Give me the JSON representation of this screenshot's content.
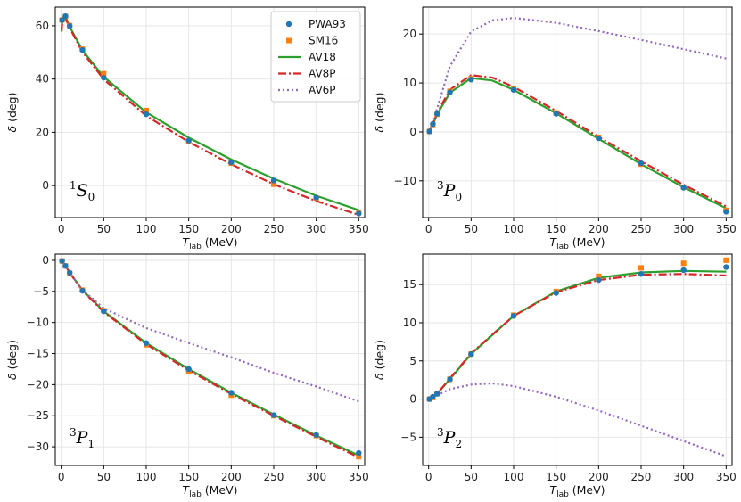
{
  "colors": {
    "pwa93": "#1f77b4",
    "sm16": "#ff7f0e",
    "av18": "#2ca02c",
    "av8p": "#d62728",
    "av6p": "#9467bd",
    "grid": "#e6e6e6",
    "axis": "#000000"
  },
  "legend": {
    "entries": [
      "PWA93",
      "SM16",
      "AV18",
      "AV8P",
      "AV6P"
    ],
    "placement": "top-right of first panel"
  },
  "chart_data": [
    {
      "type": "scatter+line",
      "panel_label": {
        "sup": "1",
        "main": "S",
        "sub": "0"
      },
      "xlabel": {
        "main": "T",
        "sub": "lab",
        "unit": "(MeV)"
      },
      "ylabel": {
        "greek": "δ",
        "unit": "(deg)"
      },
      "xlim": [
        -7,
        357
      ],
      "ylim": [
        -12,
        67
      ],
      "xticks": [
        0,
        50,
        100,
        150,
        200,
        250,
        300,
        350
      ],
      "yticks": [
        0,
        20,
        40,
        60
      ],
      "grid": true,
      "points": {
        "PWA93": [
          [
            1,
            62.1
          ],
          [
            5,
            63.6
          ],
          [
            10,
            59.9
          ],
          [
            25,
            50.9
          ],
          [
            50,
            40.5
          ],
          [
            100,
            26.8
          ],
          [
            150,
            16.9
          ],
          [
            200,
            8.7
          ],
          [
            250,
            1.9
          ],
          [
            300,
            -4.5
          ],
          [
            350,
            -10.5
          ]
        ],
        "SM16": [
          [
            1,
            62.2
          ],
          [
            5,
            63.5
          ],
          [
            10,
            60.1
          ],
          [
            25,
            51.2
          ],
          [
            50,
            42.0
          ],
          [
            100,
            28.2
          ],
          [
            150,
            16.6
          ],
          [
            200,
            8.4
          ],
          [
            250,
            0.5
          ],
          [
            300,
            -4.7
          ],
          [
            350,
            -10.0
          ]
        ]
      },
      "curves": {
        "AV18": [
          [
            0.5,
            59.0
          ],
          [
            1,
            61.5
          ],
          [
            3,
            63.6
          ],
          [
            5,
            63.3
          ],
          [
            10,
            59.6
          ],
          [
            25,
            50.8
          ],
          [
            50,
            40.8
          ],
          [
            100,
            27.5
          ],
          [
            150,
            18.0
          ],
          [
            200,
            9.8
          ],
          [
            250,
            2.6
          ],
          [
            300,
            -3.8
          ],
          [
            350,
            -9.2
          ]
        ],
        "AV8P": [
          [
            0.5,
            57.8
          ],
          [
            1,
            60.5
          ],
          [
            3,
            62.8
          ],
          [
            5,
            62.8
          ],
          [
            10,
            59.2
          ],
          [
            25,
            50.1
          ],
          [
            50,
            39.9
          ],
          [
            100,
            26.2
          ],
          [
            150,
            16.4
          ],
          [
            200,
            8.0
          ],
          [
            250,
            0.5
          ],
          [
            300,
            -5.8
          ],
          [
            350,
            -11.0
          ]
        ]
      }
    },
    {
      "type": "scatter+line",
      "panel_label": {
        "sup": "3",
        "main": "P",
        "sub": "0"
      },
      "xlabel": {
        "main": "T",
        "sub": "lab",
        "unit": "(MeV)"
      },
      "ylabel": {
        "greek": "δ",
        "unit": "(deg)"
      },
      "xlim": [
        -7,
        357
      ],
      "ylim": [
        -17.5,
        25.5
      ],
      "xticks": [
        0,
        50,
        100,
        150,
        200,
        250,
        300,
        350
      ],
      "yticks": [
        -10,
        0,
        10,
        20
      ],
      "grid": true,
      "points": {
        "PWA93": [
          [
            1,
            0.1
          ],
          [
            5,
            1.6
          ],
          [
            10,
            3.7
          ],
          [
            25,
            8.1
          ],
          [
            50,
            10.7
          ],
          [
            100,
            8.6
          ],
          [
            150,
            3.7
          ],
          [
            200,
            -1.3
          ],
          [
            250,
            -6.4
          ],
          [
            300,
            -11.4
          ],
          [
            350,
            -16.3
          ]
        ],
        "SM16": [
          [
            1,
            0.1
          ],
          [
            5,
            1.5
          ],
          [
            10,
            3.6
          ],
          [
            25,
            8.3
          ],
          [
            50,
            10.9
          ],
          [
            100,
            8.8
          ],
          [
            150,
            3.9
          ],
          [
            200,
            -1.1
          ],
          [
            250,
            -6.6
          ],
          [
            300,
            -11.3
          ],
          [
            350,
            -16.0
          ]
        ]
      },
      "curves": {
        "AV18": [
          [
            0,
            0
          ],
          [
            5,
            1.5
          ],
          [
            10,
            3.6
          ],
          [
            25,
            8.0
          ],
          [
            50,
            11.0
          ],
          [
            75,
            10.5
          ],
          [
            100,
            8.6
          ],
          [
            150,
            3.8
          ],
          [
            200,
            -1.4
          ],
          [
            250,
            -6.6
          ],
          [
            300,
            -11.3
          ],
          [
            350,
            -15.6
          ]
        ],
        "AV8P": [
          [
            0,
            0
          ],
          [
            5,
            1.6
          ],
          [
            10,
            3.9
          ],
          [
            25,
            8.6
          ],
          [
            50,
            11.6
          ],
          [
            75,
            11.1
          ],
          [
            100,
            9.2
          ],
          [
            150,
            4.3
          ],
          [
            200,
            -1.0
          ],
          [
            250,
            -6.0
          ],
          [
            300,
            -10.8
          ],
          [
            350,
            -15.2
          ]
        ],
        "AV6P": [
          [
            0,
            0
          ],
          [
            5,
            1.8
          ],
          [
            10,
            4.8
          ],
          [
            25,
            13.4
          ],
          [
            50,
            20.5
          ],
          [
            75,
            22.8
          ],
          [
            100,
            23.3
          ],
          [
            150,
            22.3
          ],
          [
            200,
            20.6
          ],
          [
            250,
            18.8
          ],
          [
            300,
            16.9
          ],
          [
            350,
            15.0
          ]
        ]
      }
    },
    {
      "type": "scatter+line",
      "panel_label": {
        "sup": "3",
        "main": "P",
        "sub": "1"
      },
      "xlabel": {
        "main": "T",
        "sub": "lab",
        "unit": "(MeV)"
      },
      "ylabel": {
        "greek": "δ",
        "unit": "(deg)"
      },
      "xlim": [
        -7,
        357
      ],
      "ylim": [
        -33,
        1
      ],
      "xticks": [
        0,
        50,
        100,
        150,
        200,
        250,
        300,
        350
      ],
      "yticks": [
        0,
        -5,
        -10,
        -15,
        -20,
        -25,
        -30
      ],
      "grid": true,
      "points": {
        "PWA93": [
          [
            1,
            -0.1
          ],
          [
            5,
            -0.9
          ],
          [
            10,
            -2.0
          ],
          [
            25,
            -4.9
          ],
          [
            50,
            -8.2
          ],
          [
            100,
            -13.3
          ],
          [
            150,
            -17.5
          ],
          [
            200,
            -21.3
          ],
          [
            250,
            -24.9
          ],
          [
            300,
            -28.1
          ],
          [
            350,
            -31.0
          ]
        ],
        "SM16": [
          [
            1,
            -0.1
          ],
          [
            5,
            -0.9
          ],
          [
            10,
            -2.1
          ],
          [
            25,
            -4.8
          ],
          [
            50,
            -8.1
          ],
          [
            100,
            -13.6
          ],
          [
            150,
            -17.9
          ],
          [
            200,
            -21.7
          ],
          [
            250,
            -25.0
          ],
          [
            300,
            -28.2
          ],
          [
            350,
            -31.6
          ]
        ]
      },
      "curves": {
        "AV18": [
          [
            0,
            0
          ],
          [
            5,
            -0.9
          ],
          [
            10,
            -2.0
          ],
          [
            25,
            -4.8
          ],
          [
            50,
            -8.2
          ],
          [
            100,
            -13.3
          ],
          [
            150,
            -17.5
          ],
          [
            200,
            -21.3
          ],
          [
            250,
            -24.8
          ],
          [
            300,
            -28.2
          ],
          [
            350,
            -31.4
          ]
        ],
        "AV8P": [
          [
            0,
            0
          ],
          [
            5,
            -0.9
          ],
          [
            10,
            -2.0
          ],
          [
            25,
            -4.9
          ],
          [
            50,
            -8.3
          ],
          [
            100,
            -13.5
          ],
          [
            150,
            -17.7
          ],
          [
            200,
            -21.5
          ],
          [
            250,
            -25.0
          ],
          [
            300,
            -28.4
          ],
          [
            350,
            -31.7
          ]
        ],
        "AV6P": [
          [
            0,
            0
          ],
          [
            5,
            -0.9
          ],
          [
            10,
            -2.0
          ],
          [
            25,
            -4.8
          ],
          [
            50,
            -7.7
          ],
          [
            100,
            -10.9
          ],
          [
            150,
            -13.3
          ],
          [
            200,
            -15.6
          ],
          [
            250,
            -18.1
          ],
          [
            300,
            -20.3
          ],
          [
            350,
            -22.7
          ]
        ]
      }
    },
    {
      "type": "scatter+line",
      "panel_label": {
        "sup": "3",
        "main": "P",
        "sub": "2"
      },
      "xlabel": {
        "main": "T",
        "sub": "lab",
        "unit": "(MeV)"
      },
      "ylabel": {
        "greek": "δ",
        "unit": "(deg)"
      },
      "xlim": [
        -7,
        357
      ],
      "ylim": [
        -8.7,
        19
      ],
      "xticks": [
        0,
        50,
        100,
        150,
        200,
        250,
        300,
        350
      ],
      "yticks": [
        -5,
        0,
        5,
        10,
        15
      ],
      "grid": true,
      "points": {
        "PWA93": [
          [
            1,
            0.0
          ],
          [
            5,
            0.3
          ],
          [
            10,
            0.7
          ],
          [
            25,
            2.6
          ],
          [
            50,
            5.9
          ],
          [
            100,
            10.9
          ],
          [
            150,
            13.9
          ],
          [
            200,
            15.6
          ],
          [
            250,
            16.4
          ],
          [
            300,
            16.9
          ],
          [
            350,
            17.3
          ]
        ],
        "SM16": [
          [
            1,
            0.0
          ],
          [
            5,
            0.2
          ],
          [
            10,
            0.7
          ],
          [
            25,
            2.6
          ],
          [
            50,
            5.9
          ],
          [
            100,
            11.0
          ],
          [
            150,
            14.1
          ],
          [
            200,
            16.1
          ],
          [
            250,
            17.2
          ],
          [
            300,
            17.8
          ],
          [
            350,
            18.2
          ]
        ]
      },
      "curves": {
        "AV18": [
          [
            0,
            0
          ],
          [
            5,
            0.2
          ],
          [
            10,
            0.7
          ],
          [
            25,
            2.6
          ],
          [
            50,
            5.9
          ],
          [
            100,
            10.9
          ],
          [
            150,
            14.1
          ],
          [
            200,
            15.9
          ],
          [
            250,
            16.6
          ],
          [
            300,
            16.8
          ],
          [
            350,
            16.7
          ]
        ],
        "AV8P": [
          [
            0,
            0
          ],
          [
            5,
            0.2
          ],
          [
            10,
            0.7
          ],
          [
            25,
            2.7
          ],
          [
            50,
            6.0
          ],
          [
            100,
            10.9
          ],
          [
            150,
            14.0
          ],
          [
            200,
            15.6
          ],
          [
            250,
            16.3
          ],
          [
            300,
            16.4
          ],
          [
            350,
            16.2
          ]
        ],
        "AV6P": [
          [
            0,
            0
          ],
          [
            10,
            0.5
          ],
          [
            25,
            1.3
          ],
          [
            50,
            1.9
          ],
          [
            75,
            2.05
          ],
          [
            100,
            1.7
          ],
          [
            150,
            0.3
          ],
          [
            200,
            -1.5
          ],
          [
            250,
            -3.5
          ],
          [
            300,
            -5.5
          ],
          [
            350,
            -7.5
          ]
        ]
      }
    }
  ]
}
